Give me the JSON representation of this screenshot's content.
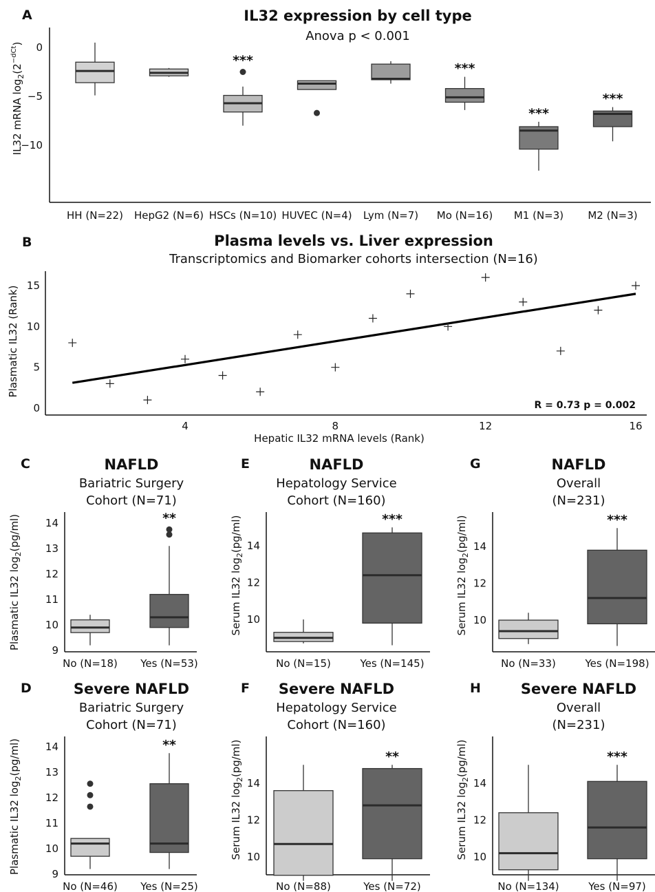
{
  "chart_data": [
    {
      "panel": "A",
      "type": "box",
      "title": "IL32 expression by cell type",
      "subtitle": "Anova p < 0.001",
      "ylabel_pre": "IL32 mRNA log",
      "ylabel_sub": "2",
      "ylabel_mid": "(2",
      "ylabel_sup": "−dCt",
      "ylabel_post": ")",
      "yticks": [
        0,
        -5,
        -10
      ],
      "ylim": [
        -13,
        2
      ],
      "categories": [
        "HH (N=22)",
        "HepG2 (N=6)",
        "HSCs (N=10)",
        "HUVEC (N=4)",
        "Lym (N=7)",
        "Mo (N=16)",
        "M1 (N=3)",
        "M2 (N=3)"
      ],
      "boxes": [
        {
          "low": -4.9,
          "q1": -3.6,
          "median": -2.4,
          "q3": -1.5,
          "high": 0.5,
          "outliers": [],
          "sig": "",
          "fill": "#d2d2d2"
        },
        {
          "low": -3.0,
          "q1": -2.9,
          "median": -2.6,
          "q3": -2.2,
          "high": -2.1,
          "outliers": [],
          "sig": "",
          "fill": "#c7c7c7"
        },
        {
          "low": -8.0,
          "q1": -6.6,
          "median": -5.7,
          "q3": -4.9,
          "high": -4.0,
          "outliers": [
            -2.5
          ],
          "sig": "***",
          "fill": "#bcbcbc"
        },
        {
          "low": -4.3,
          "q1": -4.3,
          "median": -3.7,
          "q3": -3.4,
          "high": -3.4,
          "outliers": [
            -6.7
          ],
          "sig": "",
          "fill": "#ababab"
        },
        {
          "low": -3.7,
          "q1": -3.3,
          "median": -3.2,
          "q3": -1.7,
          "high": -1.4,
          "outliers": [],
          "sig": "",
          "fill": "#9c9c9c"
        },
        {
          "low": -6.4,
          "q1": -5.6,
          "median": -5.1,
          "q3": -4.2,
          "high": -3.0,
          "outliers": [],
          "sig": "***",
          "fill": "#8c8c8c"
        },
        {
          "low": -12.6,
          "q1": -10.4,
          "median": -8.5,
          "q3": -8.1,
          "high": -7.6,
          "outliers": [],
          "sig": "***",
          "fill": "#7a7a7a"
        },
        {
          "low": -9.6,
          "q1": -8.1,
          "median": -6.8,
          "q3": -6.5,
          "high": -6.1,
          "outliers": [],
          "sig": "***",
          "fill": "#6a6a6a"
        }
      ]
    },
    {
      "panel": "B",
      "type": "scatter",
      "title": "Plasma levels vs. Liver expression",
      "subtitle": "Transcriptomics and Biomarker cohorts intersection (N=16)",
      "xlabel": "Hepatic IL32 mRNA levels (Rank)",
      "ylabel": "Plasmatic IL32 (Rank)",
      "xticks": [
        4,
        8,
        12,
        16
      ],
      "yticks": [
        0,
        5,
        10,
        15
      ],
      "xlim": [
        0.6,
        16.3
      ],
      "ylim": [
        -0.6,
        17.1
      ],
      "x": [
        1,
        2,
        3,
        4,
        5,
        6,
        7,
        8,
        9,
        10,
        11,
        12,
        13,
        14,
        15,
        16
      ],
      "y": [
        8,
        3,
        1,
        6,
        4,
        2,
        9,
        5,
        11,
        14,
        10,
        16,
        13,
        7,
        12,
        15
      ],
      "fit": {
        "x": [
          1,
          16
        ],
        "y": [
          3.1,
          14.0
        ]
      },
      "annotation": "R = 0.73 p = 0.002"
    },
    {
      "panel": "C",
      "type": "box",
      "title": "NAFLD",
      "subtitle": [
        "Bariatric Surgery",
        "Cohort (N=71)"
      ],
      "ylabel_pre": "Plasmatic IL32 log",
      "ylabel_sub": "2",
      "ylabel_post": "(pg/ml)",
      "yticks": [
        9,
        10,
        11,
        12,
        13,
        14
      ],
      "ylim": [
        9,
        14.5
      ],
      "categories": [
        "No (N=18)",
        "Yes (N=53)"
      ],
      "boxes": [
        {
          "low": 9.2,
          "q1": 9.7,
          "median": 9.9,
          "q3": 10.2,
          "high": 10.4,
          "outliers": [],
          "sig": "",
          "fill": "#cccccc"
        },
        {
          "low": 9.2,
          "q1": 9.9,
          "median": 10.3,
          "q3": 11.2,
          "high": 13.1,
          "outliers": [
            13.55,
            13.75
          ],
          "sig": "**",
          "fill": "#646464"
        }
      ]
    },
    {
      "panel": "E",
      "type": "box",
      "title": "NAFLD",
      "subtitle": [
        "Hepatology Service",
        "Cohort (N=160)"
      ],
      "ylabel_pre": "Serum IL32 log",
      "ylabel_sub": "2",
      "ylabel_post": "(pg/ml)",
      "yticks": [
        10,
        12,
        14
      ],
      "ylim": [
        8.5,
        16
      ],
      "categories": [
        "No (N=15)",
        "Yes (N=145)"
      ],
      "boxes": [
        {
          "low": 8.7,
          "q1": 8.8,
          "median": 9.0,
          "q3": 9.3,
          "high": 10.0,
          "outliers": [],
          "sig": "",
          "fill": "#cccccc"
        },
        {
          "low": 8.6,
          "q1": 9.8,
          "median": 12.4,
          "q3": 14.7,
          "high": 15.0,
          "outliers": [],
          "sig": "***",
          "fill": "#646464"
        }
      ]
    },
    {
      "panel": "G",
      "type": "box",
      "title": "NAFLD",
      "subtitle": [
        "Overall",
        "(N=231)"
      ],
      "ylabel_pre": "Serum IL32 log",
      "ylabel_sub": "2",
      "ylabel_post": "(pg/ml)",
      "yticks": [
        10,
        12,
        14
      ],
      "ylim": [
        8.5,
        16
      ],
      "categories": [
        "No (N=33)",
        "Yes (N=198)"
      ],
      "boxes": [
        {
          "low": 8.7,
          "q1": 9.0,
          "median": 9.4,
          "q3": 10.0,
          "high": 10.4,
          "outliers": [],
          "sig": "",
          "fill": "#cccccc"
        },
        {
          "low": 8.6,
          "q1": 9.8,
          "median": 11.2,
          "q3": 13.8,
          "high": 15.0,
          "outliers": [],
          "sig": "***",
          "fill": "#646464"
        }
      ]
    },
    {
      "panel": "D",
      "type": "box",
      "title": "Severe NAFLD",
      "subtitle": [
        "Bariatric Surgery",
        "Cohort (N=71)"
      ],
      "ylabel_pre": "Plasmatic IL32 log",
      "ylabel_sub": "2",
      "ylabel_post": "(pg/ml)",
      "yticks": [
        9,
        10,
        11,
        12,
        13,
        14
      ],
      "ylim": [
        9,
        14.5
      ],
      "categories": [
        "No (N=46)",
        "Yes (N=25)"
      ],
      "boxes": [
        {
          "low": 9.2,
          "q1": 9.7,
          "median": 10.2,
          "q3": 10.4,
          "high": 10.4,
          "outliers": [
            11.65,
            12.1,
            12.55
          ],
          "sig": "",
          "fill": "#cccccc"
        },
        {
          "low": 9.2,
          "q1": 9.85,
          "median": 10.2,
          "q3": 12.55,
          "high": 13.75,
          "outliers": [],
          "sig": "**",
          "fill": "#646464"
        }
      ]
    },
    {
      "panel": "F",
      "type": "box",
      "title": "Severe NAFLD",
      "subtitle": [
        "Hepatology Service",
        "Cohort (N=160)"
      ],
      "ylabel_pre": "Serum IL32 log",
      "ylabel_sub": "2",
      "ylabel_post": "(pg/ml)",
      "yticks": [
        10,
        12,
        14
      ],
      "ylim": [
        8.5,
        16
      ],
      "categories": [
        "No (N=88)",
        "Yes (N=72)"
      ],
      "boxes": [
        {
          "low": 8.7,
          "q1": 9.0,
          "median": 10.7,
          "q3": 13.6,
          "high": 15.0,
          "outliers": [],
          "sig": "",
          "fill": "#cccccc"
        },
        {
          "low": 8.7,
          "q1": 9.9,
          "median": 12.8,
          "q3": 14.8,
          "high": 15.0,
          "outliers": [],
          "sig": "**",
          "fill": "#646464"
        }
      ]
    },
    {
      "panel": "H",
      "type": "box",
      "title": "Severe NAFLD",
      "subtitle": [
        "Overall",
        "(N=231)"
      ],
      "ylabel_pre": "Serum IL32 log",
      "ylabel_sub": "2",
      "ylabel_post": "(pg/ml)",
      "yticks": [
        10,
        12,
        14
      ],
      "ylim": [
        8.5,
        16
      ],
      "categories": [
        "No (N=134)",
        "Yes (N=97)"
      ],
      "boxes": [
        {
          "low": 8.7,
          "q1": 9.3,
          "median": 10.2,
          "q3": 12.4,
          "high": 15.0,
          "outliers": [],
          "sig": "",
          "fill": "#cccccc"
        },
        {
          "low": 8.7,
          "q1": 9.9,
          "median": 11.6,
          "q3": 14.1,
          "high": 15.0,
          "outliers": [],
          "sig": "***",
          "fill": "#646464"
        }
      ]
    }
  ]
}
